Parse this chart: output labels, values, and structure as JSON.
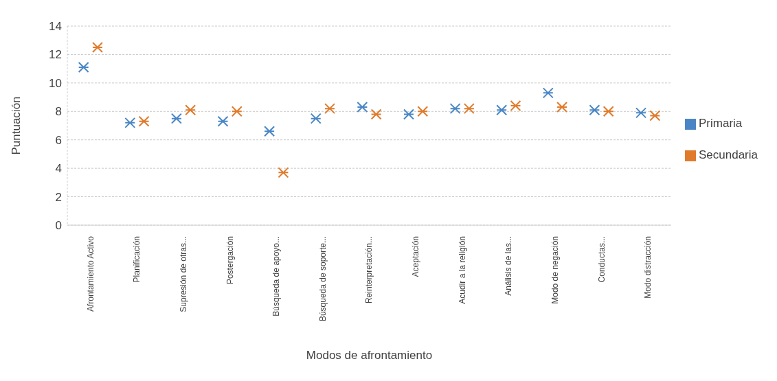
{
  "chart_data": {
    "type": "scatter",
    "xlabel": "Modos de afrontamiento",
    "ylabel": "Puntuación",
    "categories": [
      "Afrontamiento Activo",
      "Planificación",
      "Supresión de otras...",
      "Postergación",
      "Búsqueda de apoyo...",
      "Búsqueda de soporte...",
      "Reinterpretación...",
      "Aceptación",
      "Acudir a la religión",
      "Análisis de las...",
      "Modo de negación",
      "Conductas...",
      "Modo distracción"
    ],
    "series": [
      {
        "name": "Primaria",
        "color": "#4a86c5",
        "values": [
          11.1,
          7.2,
          7.5,
          7.3,
          6.6,
          7.5,
          8.3,
          7.8,
          8.2,
          8.1,
          9.3,
          8.1,
          7.9
        ]
      },
      {
        "name": "Secundaria",
        "color": "#e07b2c",
        "values": [
          12.5,
          7.3,
          8.1,
          8.0,
          3.7,
          8.2,
          7.8,
          8.0,
          8.2,
          8.4,
          8.3,
          8.0,
          7.7
        ]
      }
    ],
    "ylim": [
      0,
      14
    ],
    "yticks": [
      0,
      2,
      4,
      6,
      8,
      10,
      12,
      14
    ],
    "grid": "y",
    "legend": "right",
    "marker": "cross"
  }
}
